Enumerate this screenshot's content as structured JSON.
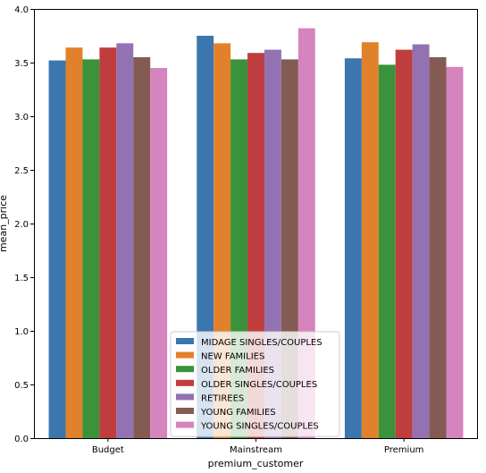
{
  "chart_data": {
    "type": "bar",
    "xlabel": "premium_customer",
    "ylabel": "mean_price",
    "categories": [
      "Budget",
      "Mainstream",
      "Premium"
    ],
    "ylim": [
      0,
      4.0
    ],
    "yticks": [
      "0.0",
      "0.5",
      "1.0",
      "1.5",
      "2.0",
      "2.5",
      "3.0",
      "3.5",
      "4.0"
    ],
    "grid": false,
    "legend_position": "bottom-center",
    "series": [
      {
        "name": "MIDAGE SINGLES/COUPLES",
        "color": "#3b76af",
        "values": [
          3.52,
          3.75,
          3.54
        ]
      },
      {
        "name": "NEW FAMILIES",
        "color": "#e1812b",
        "values": [
          3.64,
          3.68,
          3.69
        ]
      },
      {
        "name": "OLDER FAMILIES",
        "color": "#3a923a",
        "values": [
          3.53,
          3.53,
          3.48
        ]
      },
      {
        "name": "OLDER SINGLES/COUPLES",
        "color": "#c03d3e",
        "values": [
          3.64,
          3.59,
          3.62
        ]
      },
      {
        "name": "RETIREES",
        "color": "#9372b2",
        "values": [
          3.68,
          3.62,
          3.67
        ]
      },
      {
        "name": "YOUNG FAMILIES",
        "color": "#845b53",
        "values": [
          3.55,
          3.53,
          3.55
        ]
      },
      {
        "name": "YOUNG SINGLES/COUPLES",
        "color": "#d684bd",
        "values": [
          3.45,
          3.82,
          3.46
        ]
      }
    ]
  }
}
